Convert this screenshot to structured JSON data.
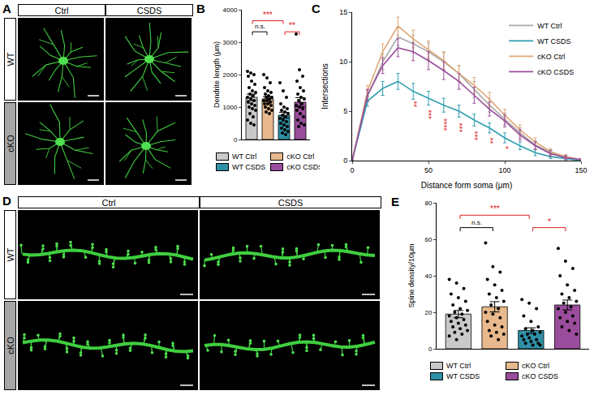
{
  "panels": [
    {
      "label": "A",
      "columns": [
        "Ctrl",
        "CSDS"
      ],
      "rows": [
        "WT",
        "cKO"
      ]
    },
    {
      "label": "D",
      "columns": [
        "Ctrl",
        "CSDS"
      ],
      "rows": [
        "WT",
        "cKO"
      ]
    }
  ],
  "chart_data": [
    {
      "label": "B",
      "type": "bar",
      "categories": [
        "WT Ctrl",
        "cKO Ctrl",
        "WT CSDS",
        "cKO CSDS"
      ],
      "values": [
        1300,
        1250,
        750,
        1150
      ],
      "errors": [
        100,
        70,
        90,
        140
      ],
      "colors": [
        "#c9c9c9",
        "#e8b98c",
        "#2f8fa6",
        "#9a4d9c"
      ],
      "points": [
        [
          2100,
          2050,
          2000,
          1950,
          1800,
          1700,
          1600,
          1500,
          1450,
          1400,
          1350,
          1300,
          1250,
          1200,
          1150,
          1100,
          1050,
          1000,
          950,
          900,
          800,
          700,
          600,
          500,
          450
        ],
        [
          2000,
          1900,
          1750,
          1600,
          1500,
          1450,
          1400,
          1350,
          1300,
          1300,
          1250,
          1200,
          1200,
          1150,
          1100,
          1100,
          1050,
          1000,
          950,
          900,
          850,
          800
        ],
        [
          1750,
          1500,
          1300,
          1100,
          1000,
          950,
          900,
          850,
          800,
          750,
          700,
          650,
          600,
          550,
          500,
          450,
          400,
          350,
          300,
          250,
          200,
          150
        ],
        [
          3250,
          2150,
          1950,
          1800,
          1600,
          1500,
          1400,
          1300,
          1250,
          1200,
          1100,
          1050,
          1000,
          950,
          900,
          800,
          700,
          600,
          500,
          450,
          400
        ]
      ],
      "ylabel": "Dendrite length (μm)",
      "ylim": [
        0,
        4000
      ],
      "yticks": [
        0,
        1000,
        2000,
        3000,
        4000
      ],
      "tick_labels": "y",
      "legend": "bottom",
      "comparisons": [
        {
          "from": "WT Ctrl",
          "to": "cKO Ctrl",
          "text": "n.s.",
          "color": "#000000"
        },
        {
          "from": "WT Ctrl",
          "to": "WT CSDS",
          "text": "***",
          "color": "#e02020"
        },
        {
          "from": "WT CSDS",
          "to": "cKO CSDS",
          "text": "**",
          "color": "#e02020"
        }
      ]
    },
    {
      "label": "C",
      "type": "line",
      "x": [
        0,
        10,
        20,
        30,
        40,
        50,
        60,
        70,
        80,
        90,
        100,
        110,
        120,
        130,
        140,
        150
      ],
      "series": [
        {
          "name": "WT Ctrl",
          "color": "#a9a9a9",
          "values": [
            0,
            6.5,
            10,
            12.5,
            11.8,
            11,
            10,
            8.8,
            7.2,
            5.6,
            4.2,
            2.8,
            1.6,
            0.8,
            0.3,
            0.1
          ],
          "errors": [
            0,
            0.6,
            0.8,
            0.9,
            0.9,
            0.9,
            0.9,
            0.8,
            0.8,
            0.7,
            0.6,
            0.5,
            0.4,
            0.3,
            0.2,
            0.1
          ]
        },
        {
          "name": "WT CSDS",
          "color": "#2f9fb0",
          "values": [
            0,
            6,
            7.3,
            8,
            7,
            6.3,
            5.6,
            5,
            4.1,
            3.3,
            2.3,
            1.5,
            0.8,
            0.4,
            0.2,
            0
          ],
          "errors": [
            0,
            0.5,
            0.7,
            0.8,
            0.8,
            0.7,
            0.7,
            0.6,
            0.6,
            0.5,
            0.5,
            0.4,
            0.3,
            0.2,
            0.1,
            0
          ]
        },
        {
          "name": "cKO Ctrl",
          "color": "#e0a878",
          "values": [
            0,
            7,
            11,
            13.6,
            12.3,
            11.2,
            10.1,
            8.8,
            7.6,
            6.2,
            4.6,
            3.1,
            1.9,
            0.9,
            0.4,
            0.1
          ],
          "errors": [
            0,
            0.6,
            0.8,
            0.9,
            0.9,
            0.9,
            0.9,
            0.8,
            0.8,
            0.7,
            0.6,
            0.5,
            0.4,
            0.3,
            0.2,
            0.1
          ]
        },
        {
          "name": "cKO CSDS",
          "color": "#9a4d9c",
          "values": [
            0,
            6.6,
            9.6,
            11.4,
            11,
            10.1,
            9.1,
            8,
            6.6,
            5.2,
            4,
            2.6,
            1.5,
            0.7,
            0.3,
            0.1
          ],
          "errors": [
            0,
            0.6,
            0.8,
            0.9,
            0.9,
            0.9,
            0.9,
            0.8,
            0.8,
            0.7,
            0.6,
            0.5,
            0.4,
            0.3,
            0.2,
            0.1
          ]
        }
      ],
      "xlabel": "Distance form soma (μm)",
      "ylabel": "Intersections",
      "xlim": [
        0,
        150
      ],
      "xticks": [
        0,
        50,
        100,
        150
      ],
      "ylim": [
        0,
        15
      ],
      "yticks": [
        0,
        5,
        10,
        15
      ],
      "legend": "upper right",
      "marker": "none",
      "line_style": "solid",
      "annotations": [
        {
          "x": 40,
          "text": "**",
          "series": "WT CSDS",
          "color": "#e02020"
        },
        {
          "x": 50,
          "text": "***",
          "series": "WT CSDS",
          "color": "#e02020"
        },
        {
          "x": 60,
          "text": "****",
          "series": "WT CSDS",
          "color": "#e02020"
        },
        {
          "x": 70,
          "text": "***",
          "series": "WT CSDS",
          "color": "#e02020"
        },
        {
          "x": 80,
          "text": "***",
          "series": "WT CSDS",
          "color": "#e02020"
        },
        {
          "x": 90,
          "text": "**",
          "series": "WT CSDS",
          "color": "#e02020"
        },
        {
          "x": 100,
          "text": "*",
          "series": "WT CSDS",
          "color": "#e02020"
        }
      ]
    },
    {
      "label": "E",
      "type": "bar",
      "categories": [
        "WT Ctrl",
        "cKO Ctrl",
        "WT CSDS",
        "cKO CSDS"
      ],
      "values": [
        19,
        23,
        10,
        24
      ],
      "errors": [
        2,
        2.8,
        1.5,
        2.7
      ],
      "colors": [
        "#c9c9c9",
        "#e8b98c",
        "#2f8fa6",
        "#9a4d9c"
      ],
      "points": [
        [
          38,
          36,
          33,
          30,
          28,
          26,
          24,
          22,
          21,
          20,
          19,
          18,
          17,
          16,
          15,
          14,
          13,
          12,
          11,
          10,
          9,
          8,
          7,
          5
        ],
        [
          58,
          45,
          42,
          38,
          35,
          32,
          30,
          28,
          26,
          24,
          22,
          20,
          19,
          17,
          15,
          13,
          12,
          10,
          9,
          8,
          7,
          5
        ],
        [
          27,
          25,
          22,
          18,
          15,
          12,
          11,
          10,
          9,
          8,
          8,
          7,
          6,
          5,
          5,
          4,
          3,
          3,
          2,
          2
        ],
        [
          55,
          48,
          44,
          40,
          35,
          32,
          30,
          28,
          26,
          25,
          23,
          22,
          20,
          18,
          17,
          15,
          14,
          12,
          10,
          8
        ]
      ],
      "ylabel": "Spine density/10μm",
      "ylim": [
        0,
        80
      ],
      "yticks": [
        0,
        20,
        40,
        60,
        80
      ],
      "tick_labels": "y",
      "legend": "bottom",
      "comparisons": [
        {
          "from": "WT Ctrl",
          "to": "cKO Ctrl",
          "text": "n.s.",
          "color": "#000000"
        },
        {
          "from": "WT Ctrl",
          "to": "WT CSDS",
          "text": "***",
          "color": "#e02020"
        },
        {
          "from": "WT CSDS",
          "to": "cKO CSDS",
          "text": "*",
          "color": "#e02020"
        }
      ]
    }
  ]
}
